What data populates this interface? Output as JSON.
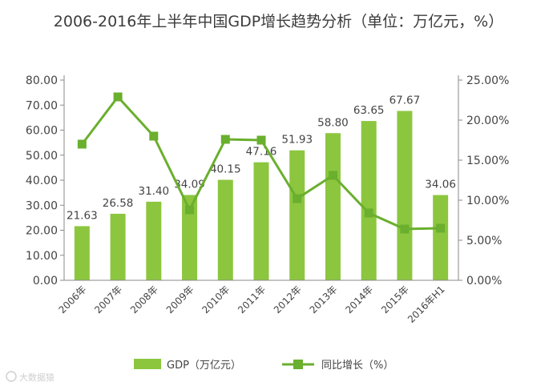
{
  "chart_data": {
    "type": "bar+line",
    "title": "2006-2016年上半年中国GDP增长趋势分析（单位：万亿元，%）",
    "categories": [
      "2006年",
      "2007年",
      "2008年",
      "2009年",
      "2010年",
      "2011年",
      "2012年",
      "2013年",
      "2014年",
      "2015年",
      "2016年H1"
    ],
    "series": [
      {
        "name": "GDP（万亿元）",
        "type": "bar",
        "axis": "left",
        "color": "#8cc63f",
        "values": [
          21.63,
          26.58,
          31.4,
          34.09,
          40.15,
          47.16,
          51.93,
          58.8,
          63.65,
          67.67,
          34.06
        ],
        "labels": [
          "21.63",
          "26.58",
          "31.40",
          "34.09",
          "40.15",
          "47.16",
          "51.93",
          "58.80",
          "63.65",
          "67.67",
          "34.06"
        ]
      },
      {
        "name": "同比增长（%）",
        "type": "line",
        "axis": "right",
        "color": "#6aaf2d",
        "values": [
          17.0,
          22.9,
          18.0,
          8.8,
          17.6,
          17.5,
          10.2,
          13.1,
          8.4,
          6.4,
          6.5
        ]
      }
    ],
    "y_left": {
      "min": 0,
      "max": 80,
      "ticks": [
        "80.00",
        "70.00",
        "60.00",
        "50.00",
        "40.00",
        "30.00",
        "20.00",
        "10.00",
        "0.00"
      ]
    },
    "y_right": {
      "min": 0,
      "max": 25,
      "ticks": [
        "25.00%",
        "20.00%",
        "15.00%",
        "10.00%",
        "5.00%",
        "0.00%"
      ]
    },
    "legend": {
      "placement": "bottom"
    }
  },
  "watermark": "大数据猿"
}
